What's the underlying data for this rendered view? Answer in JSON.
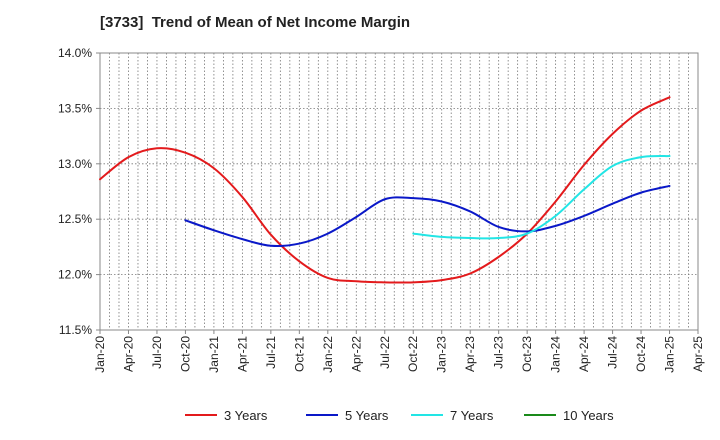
{
  "chart_data": {
    "type": "line",
    "title": "[3733]  Trend of Mean of Net Income Margin",
    "xlabel": "",
    "ylabel": "",
    "ylim": [
      11.5,
      14.0
    ],
    "yticks": [
      "11.5%",
      "12.0%",
      "12.5%",
      "13.0%",
      "13.5%",
      "14.0%"
    ],
    "ytick_values": [
      11.5,
      12.0,
      12.5,
      13.0,
      13.5,
      14.0
    ],
    "xticks": [
      "Jan-20",
      "Apr-20",
      "Jul-20",
      "Oct-20",
      "Jan-21",
      "Apr-21",
      "Jul-21",
      "Oct-21",
      "Jan-22",
      "Apr-22",
      "Jul-22",
      "Oct-22",
      "Jan-23",
      "Apr-23",
      "Jul-23",
      "Oct-23",
      "Jan-24",
      "Apr-24",
      "Jul-24",
      "Oct-24",
      "Jan-25",
      "Apr-25"
    ],
    "grid": true,
    "legend_position": "bottom",
    "series": [
      {
        "name": "3 Years",
        "color": "#e31a1c",
        "x": [
          "Jan-20",
          "Apr-20",
          "Jul-20",
          "Oct-20",
          "Jan-21",
          "Apr-21",
          "Jul-21",
          "Oct-21",
          "Jan-22",
          "Apr-22",
          "Jul-22",
          "Oct-22",
          "Jan-23",
          "Apr-23",
          "Jul-23",
          "Oct-23",
          "Jan-24",
          "Apr-24",
          "Jul-24",
          "Oct-24",
          "Jan-25"
        ],
        "values": [
          12.86,
          13.06,
          13.14,
          13.1,
          12.96,
          12.7,
          12.36,
          12.12,
          11.97,
          11.94,
          11.93,
          11.93,
          11.95,
          12.01,
          12.16,
          12.37,
          12.66,
          12.99,
          13.27,
          13.48,
          13.6
        ]
      },
      {
        "name": "5 Years",
        "color": "#0a18c8",
        "x": [
          "Oct-20",
          "Jan-21",
          "Apr-21",
          "Jul-21",
          "Oct-21",
          "Jan-22",
          "Apr-22",
          "Jul-22",
          "Oct-22",
          "Jan-23",
          "Apr-23",
          "Jul-23",
          "Oct-23",
          "Jan-24",
          "Apr-24",
          "Jul-24",
          "Oct-24",
          "Jan-25"
        ],
        "values": [
          12.49,
          12.4,
          12.32,
          12.26,
          12.28,
          12.37,
          12.52,
          12.68,
          12.69,
          12.66,
          12.57,
          12.43,
          12.39,
          12.44,
          12.53,
          12.64,
          12.74,
          12.8
        ]
      },
      {
        "name": "7 Years",
        "color": "#22e5e5",
        "x": [
          "Oct-22",
          "Jan-23",
          "Apr-23",
          "Jul-23",
          "Oct-23",
          "Jan-24",
          "Apr-24",
          "Jul-24",
          "Oct-24",
          "Jan-25"
        ],
        "values": [
          12.37,
          12.34,
          12.33,
          12.33,
          12.37,
          12.53,
          12.77,
          12.98,
          13.06,
          13.07
        ]
      },
      {
        "name": "10 Years",
        "color": "#1a8a1a",
        "x": [],
        "values": []
      }
    ]
  }
}
